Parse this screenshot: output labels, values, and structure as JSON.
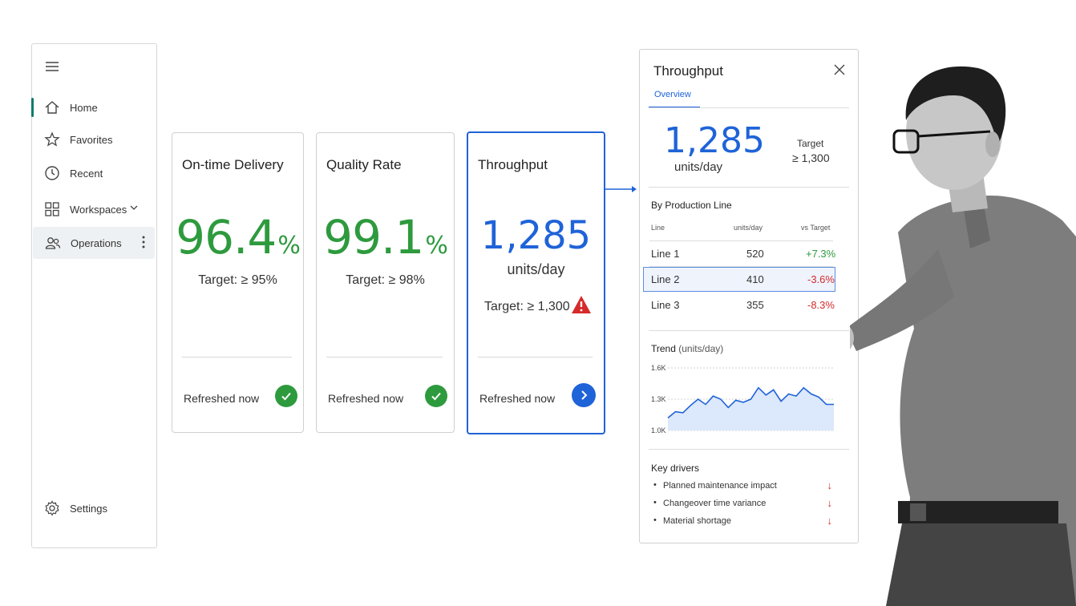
{
  "sidebar": {
    "menu_icon": "hamburger-menu-icon",
    "items": [
      {
        "label": "Home",
        "icon": "home-icon"
      },
      {
        "label": "Favorites",
        "icon": "star-icon"
      },
      {
        "label": "Recent",
        "icon": "clock-icon"
      },
      {
        "label": "Workspaces",
        "icon": "grid-icon"
      },
      {
        "label": "Operations",
        "icon": "people-icon"
      }
    ],
    "settings_label": "Settings"
  },
  "cards": [
    {
      "title": "On-time Delivery",
      "value": "96.4",
      "unit": "%",
      "target": "Target: ≥ 95%",
      "refreshed": "Refreshed now",
      "status": "ok",
      "color": "#2e9a3e"
    },
    {
      "title": "Quality Rate",
      "value": "99.1",
      "unit": "%",
      "target": "Target: ≥ 98%",
      "refreshed": "Refreshed now",
      "status": "ok",
      "color": "#2e9a3e"
    },
    {
      "title": "Throughput",
      "value": "1,285",
      "unit": "units/day",
      "target": "Target: ≥ 1,300",
      "refreshed": "Refreshed now",
      "status": "warning",
      "color": "#1f63d8"
    }
  ],
  "panel": {
    "title": "Throughput",
    "tab": "Overview",
    "value": "1,285",
    "unit": "units/day",
    "target_label": "Target",
    "target_value": "≥ 1,300",
    "section_lines": "By Production Line",
    "table": {
      "headers": [
        "Line",
        "units/day",
        "vs Target"
      ],
      "rows": [
        {
          "line": "Line 1",
          "units": "520",
          "vs": "+7.3%",
          "color": "#2e9a3e"
        },
        {
          "line": "Line 2",
          "units": "410",
          "vs": "-3.6%",
          "color": "#d62b2b"
        },
        {
          "line": "Line 3",
          "units": "355",
          "vs": "-8.3%",
          "color": "#d62b2b"
        }
      ]
    },
    "trend_title": "Trend",
    "trend_unit": "(units/day)",
    "drivers_title": "Key drivers",
    "drivers": [
      {
        "label": "Planned maintenance impact",
        "arrow": "↓"
      },
      {
        "label": "Changeover time variance",
        "arrow": "↓"
      },
      {
        "label": "Material shortage",
        "arrow": "↓"
      }
    ]
  },
  "chart_data": {
    "type": "area",
    "title": "Trend",
    "ylabel": "(units/day)",
    "yticks": [
      "1.6K",
      "1.3K",
      "1.0K"
    ],
    "ylim": [
      1000,
      1600
    ],
    "values": [
      1120,
      1180,
      1170,
      1240,
      1300,
      1250,
      1330,
      1300,
      1220,
      1290,
      1270,
      1300,
      1410,
      1340,
      1390,
      1280,
      1350,
      1330,
      1410,
      1350,
      1320,
      1250,
      1250
    ],
    "grid": true,
    "color": "#1f63d8"
  }
}
